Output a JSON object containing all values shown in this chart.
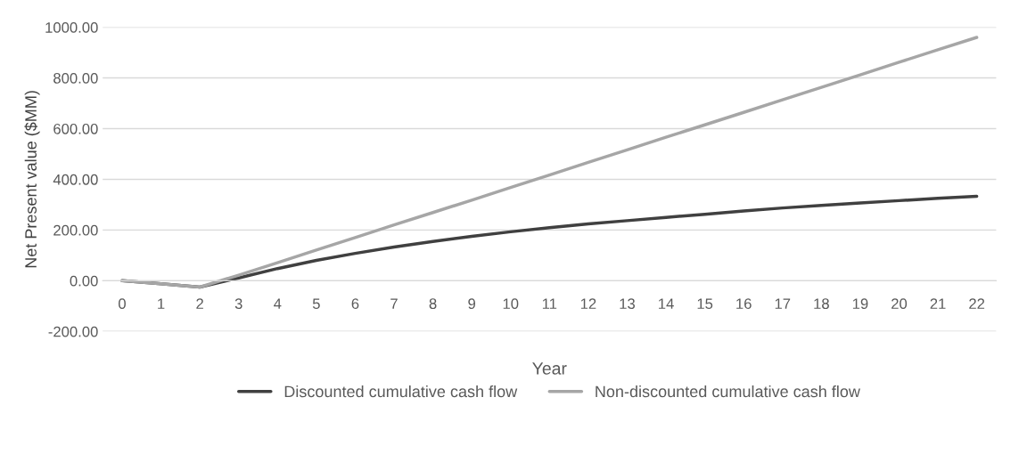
{
  "chart_data": {
    "type": "line",
    "xlabel": "Year",
    "ylabel": "Net Present value ($MM)",
    "categories": [
      "0",
      "1",
      "2",
      "3",
      "4",
      "5",
      "6",
      "7",
      "8",
      "9",
      "10",
      "11",
      "12",
      "13",
      "14",
      "15",
      "16",
      "17",
      "18",
      "19",
      "20",
      "21",
      "22"
    ],
    "series": [
      {
        "name": "Discounted cumulative cash flow",
        "color": "#404040",
        "values": [
          0,
          -12,
          -25,
          11,
          48,
          80,
          108,
          133,
          155,
          175,
          193,
          209,
          224,
          237,
          250,
          262,
          275,
          287,
          297,
          307,
          316,
          325,
          333
        ]
      },
      {
        "name": "Non-discounted cumulative cash flow",
        "color": "#a6a6a6",
        "values": [
          0,
          -12,
          -25,
          22,
          71,
          121,
          170,
          220,
          269,
          318,
          368,
          417,
          467,
          516,
          566,
          615,
          664,
          714,
          763,
          812,
          862,
          911,
          960
        ]
      }
    ],
    "ylim": [
      -200,
      1000
    ],
    "yticks": [
      {
        "value": -200,
        "label": "-200.00"
      },
      {
        "value": 0,
        "label": "0.00"
      },
      {
        "value": 200,
        "label": "200.00"
      },
      {
        "value": 400,
        "label": "400.00"
      },
      {
        "value": 600,
        "label": "600.00"
      },
      {
        "value": 800,
        "label": "800.00"
      },
      {
        "value": 1000,
        "label": "1000.00"
      }
    ],
    "grid": "y",
    "legend": "bottom",
    "marker": "none",
    "line_style": "solid"
  }
}
